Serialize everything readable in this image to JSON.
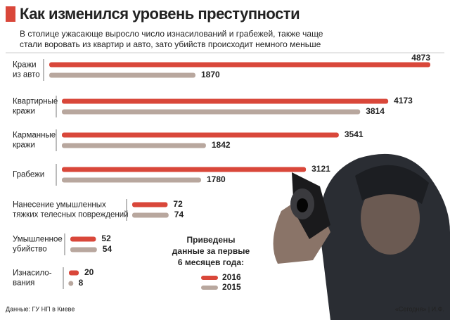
{
  "chart_data": {
    "type": "bar",
    "orientation": "horizontal",
    "title": "Как изменился уровень преступности",
    "subtitle": [
      "В столице ужасающе выросло число изнасилований и грабежей, также чаще",
      "стали воровать из квартир и авто, зато убийств происходит немного меньше"
    ],
    "categories": [
      [
        "Кражи",
        "из авто"
      ],
      [
        "Квартирные",
        "кражи"
      ],
      [
        "Карманные",
        "кражи"
      ],
      [
        "Грабежи"
      ],
      [
        "Нанесение умышленных",
        "тяжких телесных повреждений"
      ],
      [
        "Умышленное",
        "убийство"
      ],
      [
        "Изнасило-",
        "вания"
      ]
    ],
    "series": [
      {
        "name": "2016",
        "color": "#d9473a",
        "values": [
          4873,
          4173,
          3541,
          3121,
          72,
          52,
          20
        ]
      },
      {
        "name": "2015",
        "color": "#b8a79e",
        "values": [
          1870,
          3814,
          1842,
          1780,
          74,
          54,
          8
        ]
      }
    ],
    "note": [
      "Приведены",
      "данные за первые",
      "6 месяцев года:"
    ],
    "source": "Данные: ГУ НП в Киеве",
    "credit": "«Сегодня» | И.Ф."
  }
}
